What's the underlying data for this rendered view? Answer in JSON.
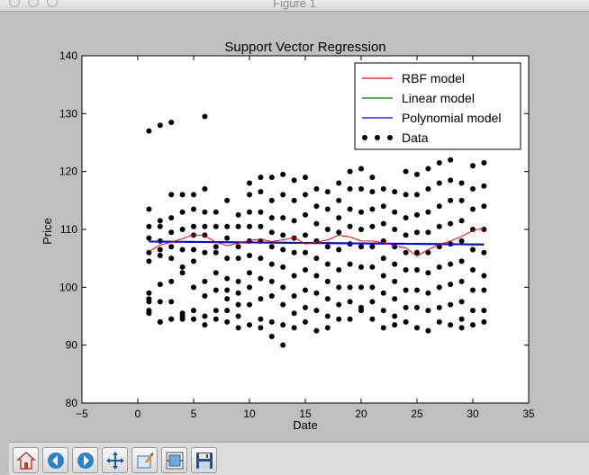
{
  "window": {
    "title": "Figure 1"
  },
  "toolbar": {
    "buttons": [
      {
        "name": "home-button",
        "icon": "home-icon"
      },
      {
        "name": "back-button",
        "icon": "back-arrow-icon"
      },
      {
        "name": "forward-button",
        "icon": "forward-arrow-icon"
      },
      {
        "name": "pan-button",
        "icon": "pan-arrows-icon"
      },
      {
        "name": "zoom-button",
        "icon": "zoom-rect-icon"
      },
      {
        "name": "subplots-button",
        "icon": "subplots-icon"
      },
      {
        "name": "save-button",
        "icon": "floppy-disk-icon"
      }
    ]
  },
  "chart_data": {
    "type": "scatter",
    "title": "Support Vector Regression",
    "xlabel": "Date",
    "ylabel": "Price",
    "xlim": [
      -5,
      35
    ],
    "ylim": [
      80,
      140
    ],
    "xticks": [
      "−5",
      "0",
      "5",
      "10",
      "15",
      "20",
      "25",
      "30",
      "35"
    ],
    "yticks": [
      "80",
      "90",
      "100",
      "110",
      "120",
      "130",
      "140"
    ],
    "grid": false,
    "legend_position": "top-right",
    "legend": [
      {
        "label": "RBF model",
        "color": "#ff0000",
        "kind": "line"
      },
      {
        "label": "Linear model",
        "color": "#008000",
        "kind": "line"
      },
      {
        "label": "Polynomial model",
        "color": "#0000ff",
        "kind": "line"
      },
      {
        "label": "Data",
        "color": "#000000",
        "kind": "dots"
      }
    ],
    "data": {
      "x": [
        1,
        1,
        1,
        1,
        1,
        1,
        1,
        1,
        1,
        1,
        1,
        2,
        2,
        2,
        2,
        2,
        2,
        2,
        2,
        2,
        2,
        3,
        3,
        3,
        3,
        3,
        3,
        3,
        3,
        3,
        3,
        4,
        4,
        4,
        4,
        4,
        4,
        4,
        4,
        4,
        5,
        5,
        5,
        5,
        5,
        5,
        5,
        5,
        5,
        6,
        6,
        6,
        6,
        6,
        6,
        6,
        6,
        6,
        6,
        7,
        7,
        7,
        7,
        7,
        7,
        7,
        7,
        8,
        8,
        8,
        8,
        8,
        8,
        8,
        8,
        8,
        9,
        9,
        9,
        9,
        9,
        9,
        9,
        9,
        9,
        10,
        10,
        10,
        10,
        10,
        10,
        10,
        10,
        10,
        10,
        11,
        11,
        11,
        11,
        11,
        11,
        11,
        11,
        11,
        11,
        12,
        12,
        12,
        12,
        12,
        12,
        12,
        12,
        12,
        12,
        13,
        13,
        13,
        13,
        13,
        13,
        13,
        13,
        13,
        13,
        14,
        14,
        14,
        14,
        14,
        14,
        14,
        14,
        14,
        15,
        15,
        15,
        15,
        15,
        15,
        15,
        15,
        15,
        16,
        16,
        16,
        16,
        16,
        16,
        16,
        16,
        16,
        17,
        17,
        17,
        17,
        17,
        17,
        17,
        17,
        17,
        18,
        18,
        18,
        18,
        18,
        18,
        18,
        18,
        18,
        19,
        19,
        19,
        19,
        19,
        19,
        19,
        19,
        19,
        20,
        20,
        20,
        20,
        20,
        20,
        20,
        20,
        20,
        21,
        21,
        21,
        21,
        21,
        21,
        21,
        21,
        21,
        22,
        22,
        22,
        22,
        22,
        22,
        22,
        22,
        22,
        23,
        23,
        23,
        23,
        23,
        23,
        23,
        23,
        23,
        24,
        24,
        24,
        24,
        24,
        24,
        24,
        24,
        24,
        25,
        25,
        25,
        25,
        25,
        25,
        25,
        25,
        25,
        26,
        26,
        26,
        26,
        26,
        26,
        26,
        26,
        26,
        27,
        27,
        27,
        27,
        27,
        27,
        27,
        27,
        27,
        28,
        28,
        28,
        28,
        28,
        28,
        28,
        28,
        28,
        29,
        29,
        29,
        29,
        29,
        29,
        29,
        29,
        29,
        30,
        30,
        30,
        30,
        30,
        30,
        30,
        30,
        30,
        31,
        31,
        31,
        31,
        31,
        31,
        31,
        31,
        31
      ],
      "y": [
        127,
        113.5,
        110.5,
        108.5,
        106,
        104.5,
        99,
        98,
        95.5,
        96,
        97.5,
        128,
        111.5,
        108,
        106.5,
        105.5,
        100.5,
        97.5,
        94,
        94,
        110.5,
        128.5,
        116,
        112,
        109.5,
        107,
        105,
        101,
        97.5,
        94.5,
        94.5,
        116,
        113,
        110,
        106.5,
        103.5,
        102.5,
        95.5,
        95,
        94.5,
        116,
        113.5,
        110.5,
        109,
        106.5,
        104.5,
        100,
        96,
        94.5,
        129.5,
        117,
        113,
        110.5,
        109,
        106,
        101,
        98.5,
        95,
        93.5,
        113,
        110.5,
        107,
        106,
        102.5,
        99.5,
        96,
        94.5,
        115,
        110.5,
        108.5,
        105,
        101.5,
        99.5,
        98,
        96,
        94,
        112.5,
        110.5,
        107,
        105,
        101,
        99,
        97,
        95,
        93,
        118,
        116,
        113,
        110.5,
        108,
        105.5,
        102.5,
        100,
        97,
        93.5,
        119,
        116.5,
        113,
        110.5,
        108,
        105,
        101.5,
        98,
        94.5,
        93,
        119,
        115,
        112,
        109.5,
        107,
        104,
        101,
        98.5,
        94,
        91.5,
        119.5,
        116,
        112,
        109,
        106.5,
        103.5,
        100,
        97,
        93.5,
        90,
        118.5,
        115,
        111.5,
        108.5,
        106,
        102,
        98.5,
        95.5,
        93,
        119,
        116,
        112.5,
        109,
        106,
        103,
        99.5,
        96.5,
        94,
        117,
        114,
        111,
        108,
        105,
        102,
        99,
        96,
        92.5,
        116.5,
        113.5,
        110,
        107,
        104,
        101,
        98,
        95,
        93,
        118,
        115,
        112,
        109.5,
        106.5,
        103,
        100,
        97,
        94.5,
        120,
        117,
        113.5,
        110.5,
        107.5,
        104,
        100,
        97.5,
        94.5,
        120.5,
        117,
        113,
        110,
        107,
        103.5,
        100,
        96.5,
        96,
        119,
        116.5,
        113.5,
        110.5,
        107,
        103.5,
        100,
        97.5,
        94.5,
        117,
        114,
        111,
        108,
        105,
        102,
        99,
        96,
        93,
        116.5,
        113,
        110,
        107,
        104,
        101,
        98,
        95,
        93.5,
        120,
        116,
        112,
        109,
        106,
        103,
        99.5,
        96.5,
        94,
        119.5,
        116,
        112.5,
        109.5,
        106,
        103,
        99.5,
        96.5,
        93,
        120.5,
        117,
        113,
        109.5,
        106,
        102.5,
        99,
        96,
        92.5,
        121.5,
        118,
        114,
        110.5,
        107,
        103.5,
        100,
        96.5,
        94,
        122,
        118.5,
        115,
        111,
        107.5,
        104,
        100.5,
        97,
        93.5,
        118,
        115,
        111.5,
        108,
        104.5,
        101,
        97.5,
        94.5,
        93,
        121,
        117,
        113.5,
        110,
        106.5,
        103,
        99.5,
        96,
        93.5,
        121.5,
        117.5,
        114,
        110,
        106,
        102,
        99.5,
        96,
        94
      ]
    },
    "models": {
      "linear": {
        "x": [
          1,
          31
        ],
        "y": [
          107.9,
          107.4
        ]
      },
      "polynomial": {
        "x": [
          1,
          31
        ],
        "y": [
          107.9,
          107.4
        ]
      },
      "rbf": {
        "x": [
          1,
          2,
          3,
          4,
          5,
          6,
          7,
          8,
          9,
          10,
          11,
          12,
          13,
          14,
          15,
          16,
          17,
          18,
          19,
          20,
          21,
          22,
          23,
          24,
          25,
          26,
          27,
          28,
          29,
          30,
          31
        ],
        "y": [
          106.2,
          107.3,
          107.8,
          108.4,
          109.1,
          108.9,
          107.8,
          107.2,
          107.6,
          108.1,
          108.3,
          107.9,
          108.2,
          108.6,
          107.5,
          107.8,
          108.2,
          109.0,
          108.7,
          108.0,
          108.0,
          107.7,
          107.2,
          106.8,
          105.4,
          106.5,
          107.4,
          108.0,
          108.8,
          109.8,
          110.2
        ]
      }
    }
  }
}
